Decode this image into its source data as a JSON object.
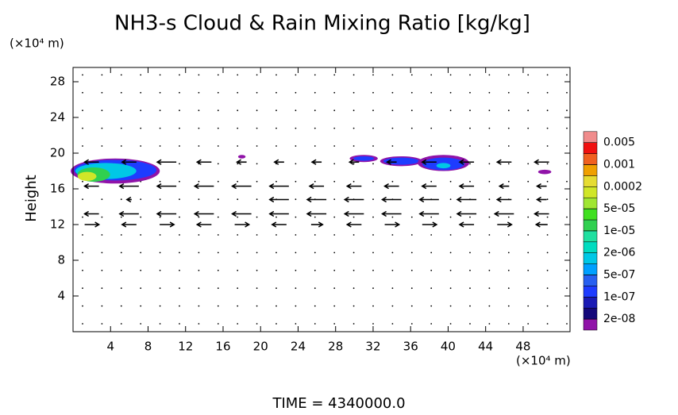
{
  "chart_data": {
    "type": "contour",
    "title": "NH3-s Cloud & Rain Mixing Ratio [kg/kg]",
    "y_unit_label": "(×10⁴ m)",
    "ylabel": "Height",
    "x_unit_label": "(×10⁴ m)",
    "footer": "TIME = 4340000.0",
    "xlim": [
      0,
      53
    ],
    "ylim": [
      0,
      29.6
    ],
    "xticks": [
      4,
      8,
      12,
      16,
      20,
      24,
      28,
      32,
      36,
      40,
      44,
      48
    ],
    "yticks": [
      4,
      8,
      12,
      16,
      20,
      24,
      28
    ],
    "colorbar": {
      "colors": [
        "#9013a8",
        "#14087a",
        "#1a1ab4",
        "#1e3cff",
        "#2860f0",
        "#00a0ff",
        "#00c8e6",
        "#00dcc0",
        "#20e0a0",
        "#30d050",
        "#40e020",
        "#a0e632",
        "#d0e628",
        "#e6dc32",
        "#f0a000",
        "#f06020",
        "#f01010",
        "#f08c8c"
      ],
      "labels": [
        {
          "value": 2e-08,
          "label": "2e-08"
        },
        {
          "value": 1e-07,
          "label": "1e-07"
        },
        {
          "value": 5e-07,
          "label": "5e-07"
        },
        {
          "value": 2e-06,
          "label": "2e-06"
        },
        {
          "value": 1e-05,
          "label": "1e-05"
        },
        {
          "value": 5e-05,
          "label": "5e-05"
        },
        0.0002,
        0.001,
        0.005
      ]
    },
    "cloud_patches": [
      {
        "x": 4.5,
        "y": 18.0,
        "w": 9.5,
        "h": 2.8,
        "level": 0
      },
      {
        "x": 4.5,
        "y": 18.1,
        "w": 8.8,
        "h": 2.3,
        "level": 3
      },
      {
        "x": 3.5,
        "y": 18.0,
        "w": 6.5,
        "h": 1.8,
        "level": 6
      },
      {
        "x": 2.2,
        "y": 17.6,
        "w": 3.5,
        "h": 1.6,
        "level": 9
      },
      {
        "x": 1.5,
        "y": 17.4,
        "w": 2.0,
        "h": 1.0,
        "level": 12
      },
      {
        "x": 18.0,
        "y": 19.6,
        "w": 0.8,
        "h": 0.4,
        "level": 0
      },
      {
        "x": 31.0,
        "y": 19.4,
        "w": 3.0,
        "h": 0.8,
        "level": 0
      },
      {
        "x": 31.0,
        "y": 19.4,
        "w": 2.2,
        "h": 0.5,
        "level": 3
      },
      {
        "x": 35.0,
        "y": 19.1,
        "w": 4.5,
        "h": 1.1,
        "level": 0
      },
      {
        "x": 35.0,
        "y": 19.1,
        "w": 3.8,
        "h": 0.8,
        "level": 3
      },
      {
        "x": 39.5,
        "y": 18.9,
        "w": 5.5,
        "h": 1.8,
        "level": 0
      },
      {
        "x": 39.5,
        "y": 18.8,
        "w": 4.5,
        "h": 1.4,
        "level": 3
      },
      {
        "x": 39.5,
        "y": 18.6,
        "w": 1.5,
        "h": 0.6,
        "level": 6
      },
      {
        "x": 50.3,
        "y": 17.9,
        "w": 1.4,
        "h": 0.5,
        "level": 0
      }
    ],
    "vector_x": [
      2,
      6,
      10,
      14,
      18,
      22,
      26,
      30,
      34,
      38,
      42,
      46,
      50
    ],
    "vectors": [
      {
        "y": 12,
        "u": [
          1.5,
          -1.5,
          1.5,
          -1.5,
          1.5,
          -1.5,
          1.2,
          -1.5,
          1.5,
          1.5,
          -1.5,
          1.5,
          -1.2
        ]
      },
      {
        "y": 13.2,
        "u": [
          -1.5,
          -2,
          -2,
          -2,
          -2,
          -2,
          -2,
          -2,
          -2,
          -2,
          -2,
          -2,
          -1.5
        ]
      },
      {
        "y": 14.8,
        "u": [
          0,
          -0.5,
          0,
          0,
          0,
          -2,
          -2,
          -2,
          -2,
          -2,
          -2,
          -1.5,
          -1
        ]
      },
      {
        "y": 16.3,
        "u": [
          -1.5,
          -2,
          -2,
          -2,
          -2,
          -2,
          -1.5,
          -1.5,
          -1.5,
          -1.5,
          -1.5,
          -1,
          -1
        ]
      },
      {
        "y": 19.0,
        "u": [
          -1.5,
          -1.5,
          -2,
          -1.5,
          -1,
          -1,
          -1,
          -1,
          -1,
          -1.5,
          -1.5,
          -1.5,
          -1.5
        ]
      }
    ]
  }
}
